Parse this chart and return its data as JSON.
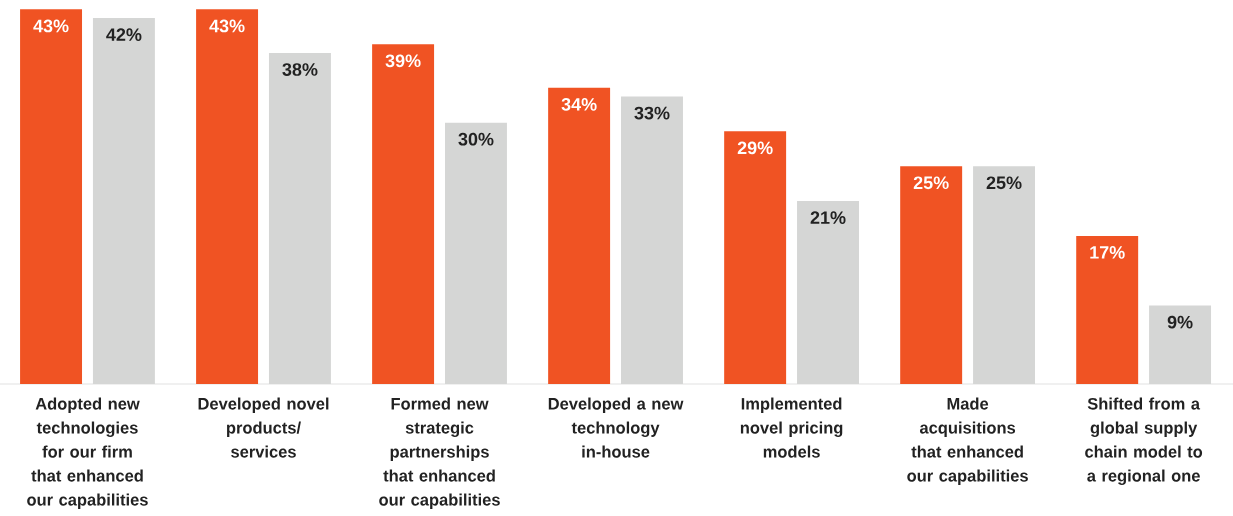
{
  "chart_data": {
    "type": "bar",
    "categories": [
      "Adopted new technologies for our firm that enhanced our capabilities",
      "Developed novel products/ services",
      "Formed new strategic partnerships that enhanced our capabilities",
      "Developed a new technology in-house",
      "Implemented novel pricing models",
      "Made acquisitions that enhanced our capabilities",
      "Shifted from a global supply chain model to a regional one"
    ],
    "series": [
      {
        "color": "#f05323",
        "values": [
          43,
          43,
          39,
          34,
          29,
          25,
          17
        ],
        "value_labels": [
          "43%",
          "43%",
          "39%",
          "34%",
          "29%",
          "25%",
          "17%"
        ]
      },
      {
        "color": "#d5d6d5",
        "values": [
          42,
          38,
          30,
          33,
          21,
          25,
          9
        ],
        "value_labels": [
          "42%",
          "38%",
          "30%",
          "33%",
          "21%",
          "25%",
          "9%"
        ]
      }
    ],
    "tick_labels": "x"
  }
}
